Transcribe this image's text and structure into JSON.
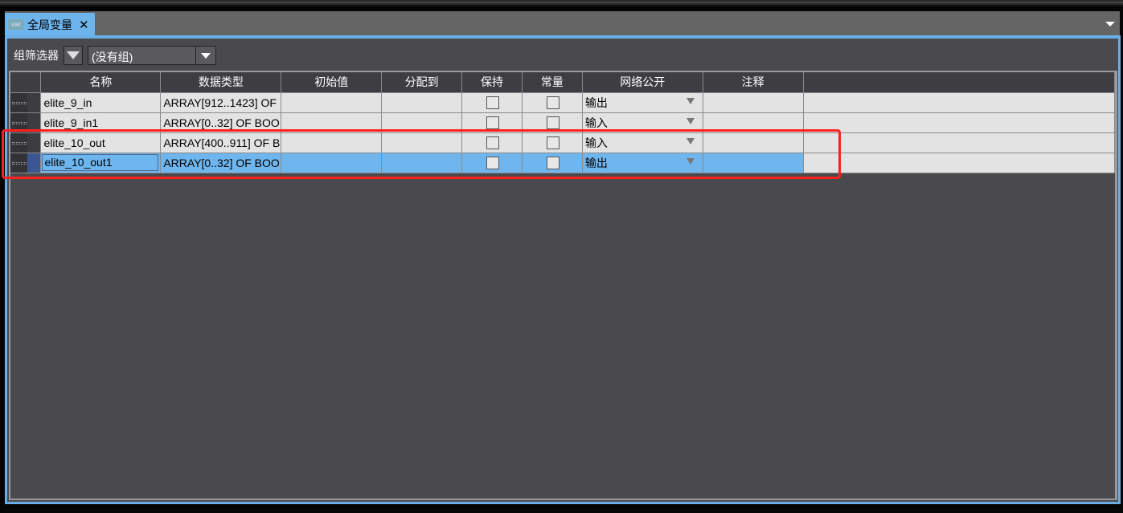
{
  "tab": {
    "icon": "var",
    "title": "全局变量",
    "close": "✕"
  },
  "filter": {
    "label": "组筛选器",
    "selected": "(没有组)"
  },
  "columns": [
    "名称",
    "数据类型",
    "初始值",
    "分配到",
    "保持",
    "常量",
    "网络公开",
    "注释"
  ],
  "rows": [
    {
      "name": "elite_9_in",
      "type": "ARRAY[912..1423] OF",
      "init": "",
      "assign": "",
      "retain": false,
      "constant": false,
      "network": "输出",
      "comment": ""
    },
    {
      "name": "elite_9_in1",
      "type": "ARRAY[0..32] OF BOO",
      "init": "",
      "assign": "",
      "retain": false,
      "constant": false,
      "network": "输入",
      "comment": ""
    },
    {
      "name": "elite_10_out",
      "type": "ARRAY[400..911] OF B",
      "init": "",
      "assign": "",
      "retain": false,
      "constant": false,
      "network": "输入",
      "comment": ""
    },
    {
      "name": "elite_10_out1",
      "type": "ARRAY[0..32] OF BOO",
      "init": "",
      "assign": "",
      "retain": false,
      "constant": false,
      "network": "输出",
      "comment": "",
      "selected": true
    }
  ],
  "colors": {
    "accent": "#6db3ec",
    "selection": "#6fb6ef",
    "highlight": "#ff2020",
    "background": "#4a494e"
  }
}
